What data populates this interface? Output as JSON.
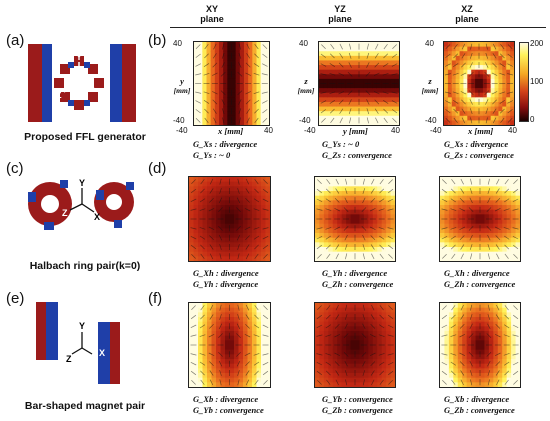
{
  "panel_labels": [
    "(a)",
    "(b)",
    "(c)",
    "(d)",
    "(e)",
    "(f)"
  ],
  "captions": {
    "a": "Proposed FFL generator",
    "c": "Halbach ring pair(k=0)",
    "e": "Bar-shaped magnet pair"
  },
  "columns": [
    {
      "title_line1": "XY",
      "title_line2": "plane"
    },
    {
      "title_line1": "YZ",
      "title_line2": "plane"
    },
    {
      "title_line1": "XZ",
      "title_line2": "plane"
    }
  ],
  "axes_b": {
    "xy": {
      "xlabel": "x [mm]",
      "ylabel_top": "y",
      "ylabel_bot": "[mm]",
      "xmin": "-40",
      "xmax": "40",
      "ymax": "40",
      "ymin": "-40"
    },
    "yz": {
      "xlabel": "y [mm]",
      "ylabel_top": "z",
      "ylabel_bot": "[mm]",
      "xmin": "-40",
      "xmax": "40",
      "ymax": "40",
      "ymin": "-40"
    },
    "xz": {
      "xlabel": "x [mm]",
      "ylabel_top": "z",
      "ylabel_bot": "[mm]",
      "xmin": "-40",
      "xmax": "40",
      "ymax": "40",
      "ymin": "-40"
    }
  },
  "colorbar": {
    "ticks": [
      "200",
      "100",
      "0"
    ]
  },
  "notes": {
    "b": [
      [
        "G_Xs : divergence",
        "G_Ys : ~ 0"
      ],
      [
        "G_Ys : ~ 0",
        "G_Zs : convergence"
      ],
      [
        "G_Xs : divergence",
        "G_Zs : convergence"
      ]
    ],
    "d": [
      [
        "G_Xh : divergence",
        "G_Yh : divergence"
      ],
      [
        "G_Yh : divergence",
        "G_Zh : convergence"
      ],
      [
        "G_Xh : divergence",
        "G_Zh : convergence"
      ]
    ],
    "f": [
      [
        "G_Xb : divergence",
        "G_Yb : convergence"
      ],
      [
        "G_Yb : convergence",
        "G_Zb : convergence"
      ],
      [
        "G_Xb : divergence",
        "G_Zb : convergence"
      ]
    ]
  },
  "labels_3d": {
    "x": "X",
    "y": "Y",
    "z": "Z"
  },
  "colors": {
    "dark": "#1a0000",
    "red": "#b81d10",
    "orange": "#f5a623",
    "yellow": "#fff35c",
    "magnet_red": "#9b1b1b",
    "magnet_blue": "#1f3fa8"
  }
}
